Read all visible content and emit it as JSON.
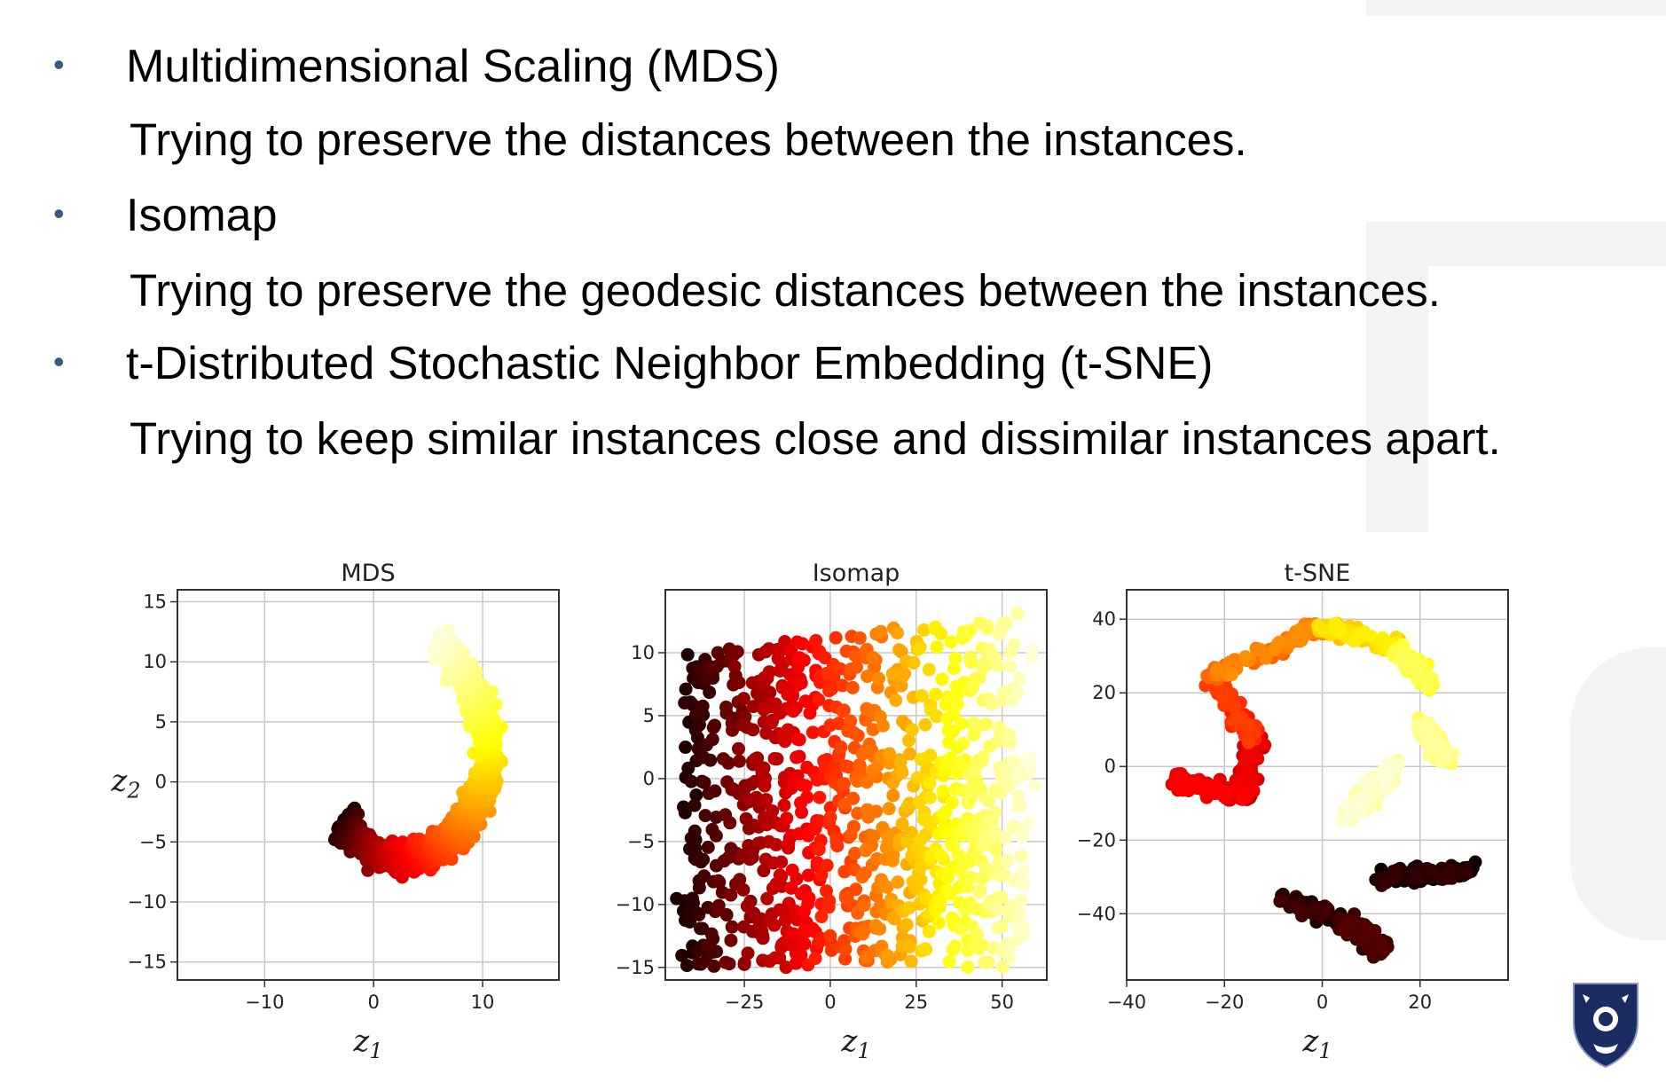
{
  "bullets": [
    {
      "heading": "Multidimensional Scaling (MDS)",
      "description": "Trying to preserve the distances between the instances."
    },
    {
      "heading": "Isomap",
      "description": "Trying to preserve the geodesic distances between the instances."
    },
    {
      "heading": "t-Distributed Stochastic Neighbor Embedding (t-SNE)",
      "description": "Trying to keep similar instances close and dissimilar instances apart."
    }
  ],
  "bullet_color": "#3a5a86",
  "colormap": "hot",
  "logo_icon": "university-shield-icon",
  "chart_data": [
    {
      "type": "scatter",
      "title": "MDS",
      "xlabel": "z1",
      "ylabel": "z2",
      "xlim": [
        -18,
        17
      ],
      "ylim": [
        -16.5,
        16
      ],
      "xticks": [
        -10,
        0,
        10
      ],
      "yticks": [
        -15,
        -10,
        -5,
        0,
        5,
        10,
        15
      ],
      "xtick_labels": [
        "−10",
        "0",
        "10"
      ],
      "ytick_labels": [
        "−15",
        "−10",
        "−5",
        "0",
        "5",
        "10",
        "15"
      ],
      "grid": true,
      "shape": "spiral-ring",
      "point_count": 1000
    },
    {
      "type": "scatter",
      "title": "Isomap",
      "xlabel": "z1",
      "ylabel": "",
      "xlim": [
        -48,
        63
      ],
      "ylim": [
        -16,
        15
      ],
      "xticks": [
        -25,
        0,
        25,
        50
      ],
      "yticks": [
        -15,
        -10,
        -5,
        0,
        5,
        10
      ],
      "xtick_labels": [
        "−25",
        "0",
        "25",
        "50"
      ],
      "ytick_labels": [
        "−15",
        "−10",
        "−5",
        "0",
        "5",
        "10"
      ],
      "grid": true,
      "shape": "unrolled-sheet",
      "point_count": 1000
    },
    {
      "type": "scatter",
      "title": "t-SNE",
      "xlabel": "z1",
      "ylabel": "",
      "xlim": [
        -40,
        38
      ],
      "ylim": [
        -58,
        48
      ],
      "xticks": [
        -40,
        -20,
        0,
        20
      ],
      "yticks": [
        -40,
        -20,
        0,
        20,
        40
      ],
      "xtick_labels": [
        "−40",
        "−20",
        "0",
        "20"
      ],
      "ytick_labels": [
        "−40",
        "−20",
        "0",
        "20",
        "40"
      ],
      "grid": true,
      "shape": "clusters",
      "point_count": 1000
    }
  ]
}
